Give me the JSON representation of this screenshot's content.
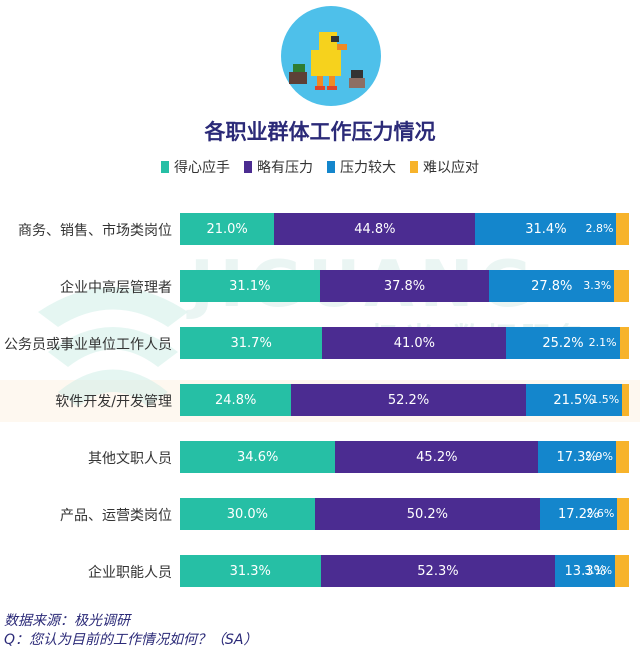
{
  "colors": {
    "teal": "#26bfa5",
    "purple": "#4b2c91",
    "blue": "#1486cc",
    "orange": "#f7b32b",
    "title": "#2b2a78"
  },
  "watermark": {
    "brand": "JIGUANG",
    "tagline": "极光 数据服务"
  },
  "chart_data": {
    "type": "bar",
    "orientation": "horizontal",
    "stacked": true,
    "title": "各职业群体工作压力情况",
    "categories": [
      "商务、销售、市场类岗位",
      "企业中高层管理者",
      "公务员或事业单位工作人员",
      "软件开发/开发管理",
      "其他文职人员",
      "产品、运营类岗位",
      "企业职能人员"
    ],
    "series": [
      {
        "name": "得心应手",
        "color": "#26bfa5",
        "values": [
          21.0,
          31.1,
          31.7,
          24.8,
          34.6,
          30.0,
          31.3
        ],
        "labels": [
          "21.0%",
          "31.1%",
          "31.7%",
          "24.8%",
          "34.6%",
          "30.0%",
          "31.3%"
        ]
      },
      {
        "name": "略有压力",
        "color": "#4b2c91",
        "values": [
          44.8,
          37.8,
          41.0,
          52.2,
          45.2,
          50.2,
          52.3
        ],
        "labels": [
          "44.8%",
          "37.8%",
          "41.0%",
          "52.2%",
          "45.2%",
          "50.2%",
          "52.3%"
        ]
      },
      {
        "name": "压力较大",
        "color": "#1486cc",
        "values": [
          31.4,
          27.8,
          25.2,
          21.5,
          17.3,
          17.2,
          13.3
        ],
        "labels": [
          "31.4%",
          "27.8%",
          "25.2%",
          "21.5%",
          "17.3%",
          "17.2%",
          "13.3%"
        ]
      },
      {
        "name": "难以应对",
        "color": "#f7b32b",
        "values": [
          2.8,
          3.3,
          2.1,
          1.5,
          2.9,
          2.6,
          3.1
        ],
        "labels": [
          "2.8%",
          "3.3%",
          "2.1%",
          "1.5%",
          "2.9%",
          "2.6%",
          "3.1%"
        ]
      }
    ],
    "xlim": [
      0,
      100
    ],
    "legend": "top-center"
  },
  "footer": {
    "source": "数据来源：极光调研",
    "question": "Q：您认为目前的工作情况如何？（SA）"
  }
}
